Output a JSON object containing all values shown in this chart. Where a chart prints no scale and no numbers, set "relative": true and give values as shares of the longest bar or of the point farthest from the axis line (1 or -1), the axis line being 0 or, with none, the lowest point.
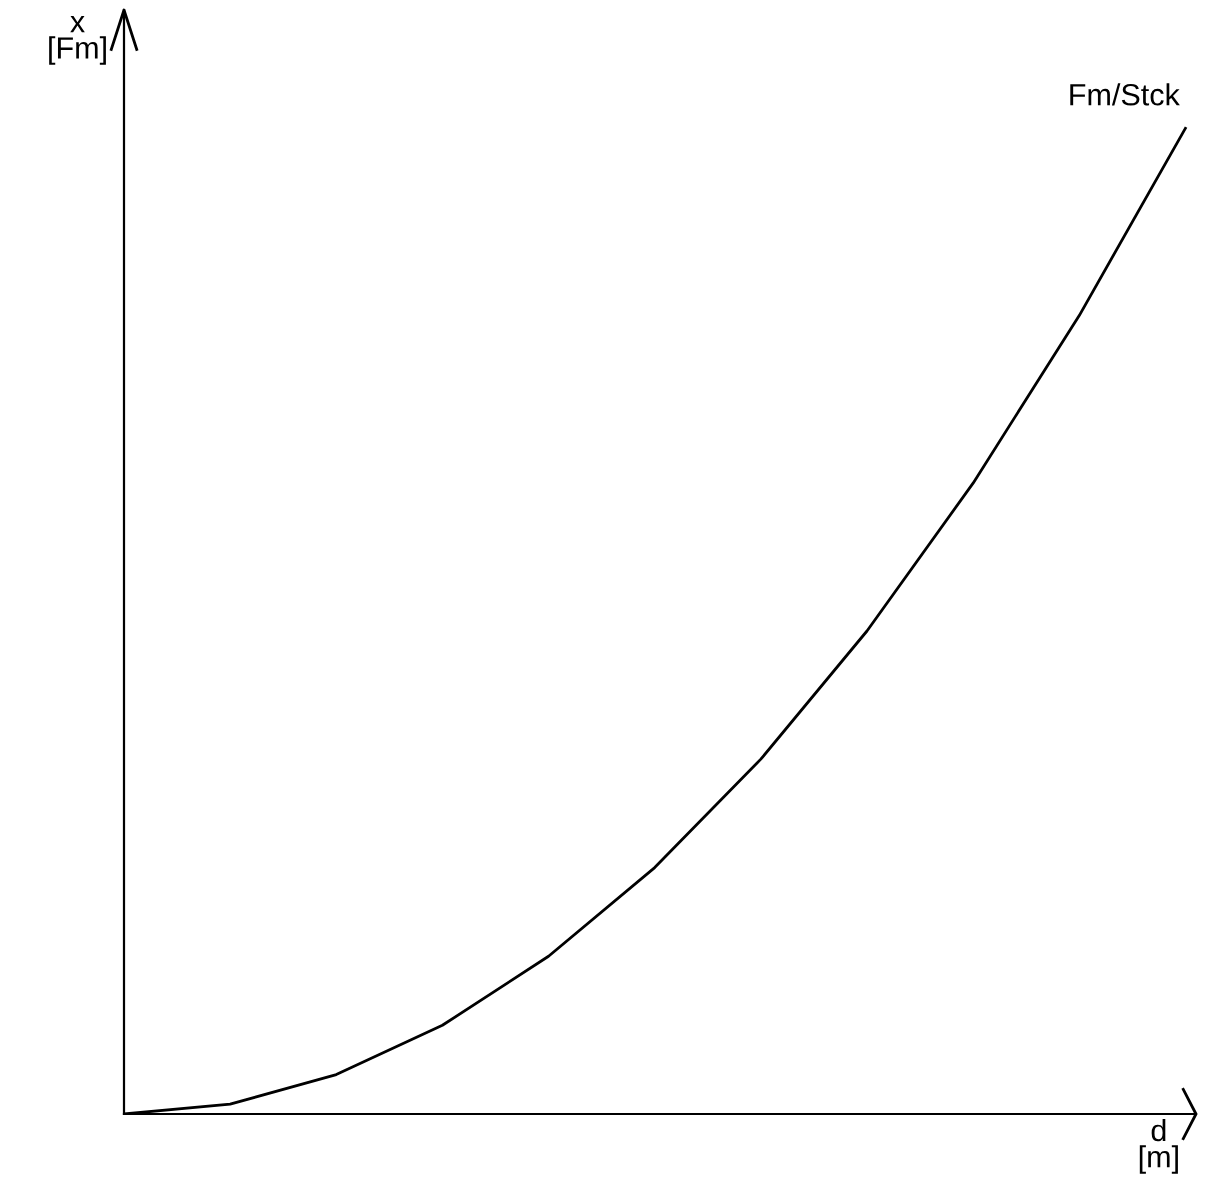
{
  "chart_data": {
    "type": "line",
    "relative": true,
    "xlabel": "d\n[m]",
    "ylabel": "x\n[Fm]",
    "categories": [
      null,
      null,
      null,
      null,
      null,
      null,
      null,
      null,
      null,
      null,
      null
    ],
    "series": [
      {
        "name": "Fm/Stck",
        "color": "#000000",
        "values": [
          0,
          0.01,
          0.04,
          0.09,
          0.16,
          0.25,
          0.36,
          0.49,
          0.64,
          0.81,
          1
        ]
      }
    ],
    "legend": false,
    "marker": "none",
    "line_style": "solid"
  }
}
